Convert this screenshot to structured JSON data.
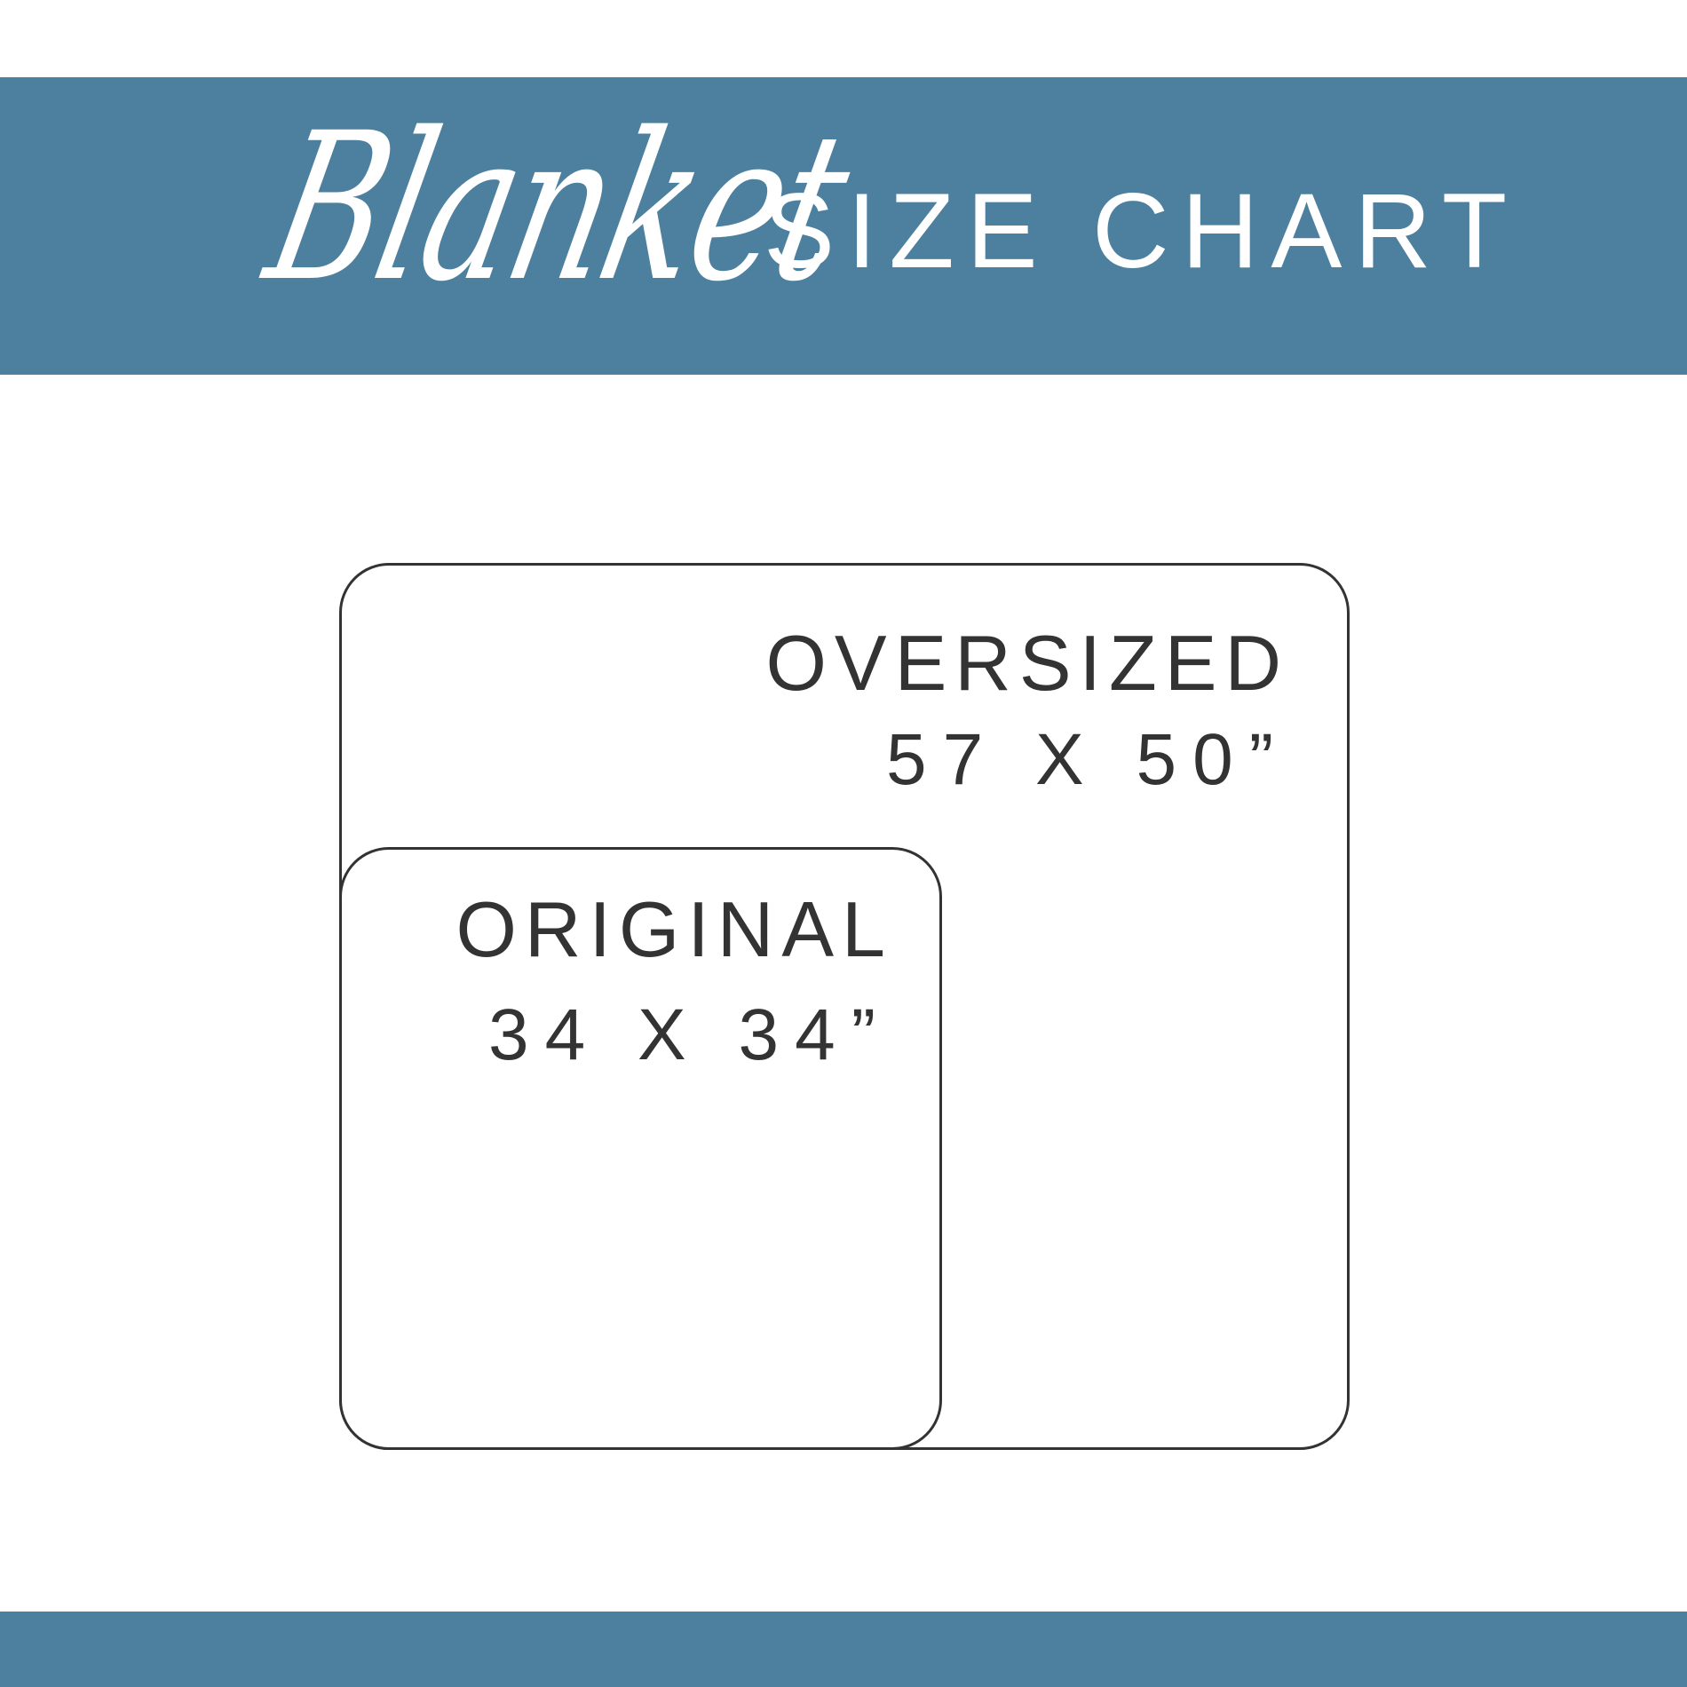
{
  "header": {
    "script_word": "Blanket",
    "title": "SIZE CHART"
  },
  "colors": {
    "band": "#4c809e",
    "outline": "#333333",
    "background": "#ffffff"
  },
  "sizes": [
    {
      "name": "OVERSIZED",
      "dimensions": "57 X 50”"
    },
    {
      "name": "ORIGINAL",
      "dimensions": "34 X 34”"
    }
  ]
}
